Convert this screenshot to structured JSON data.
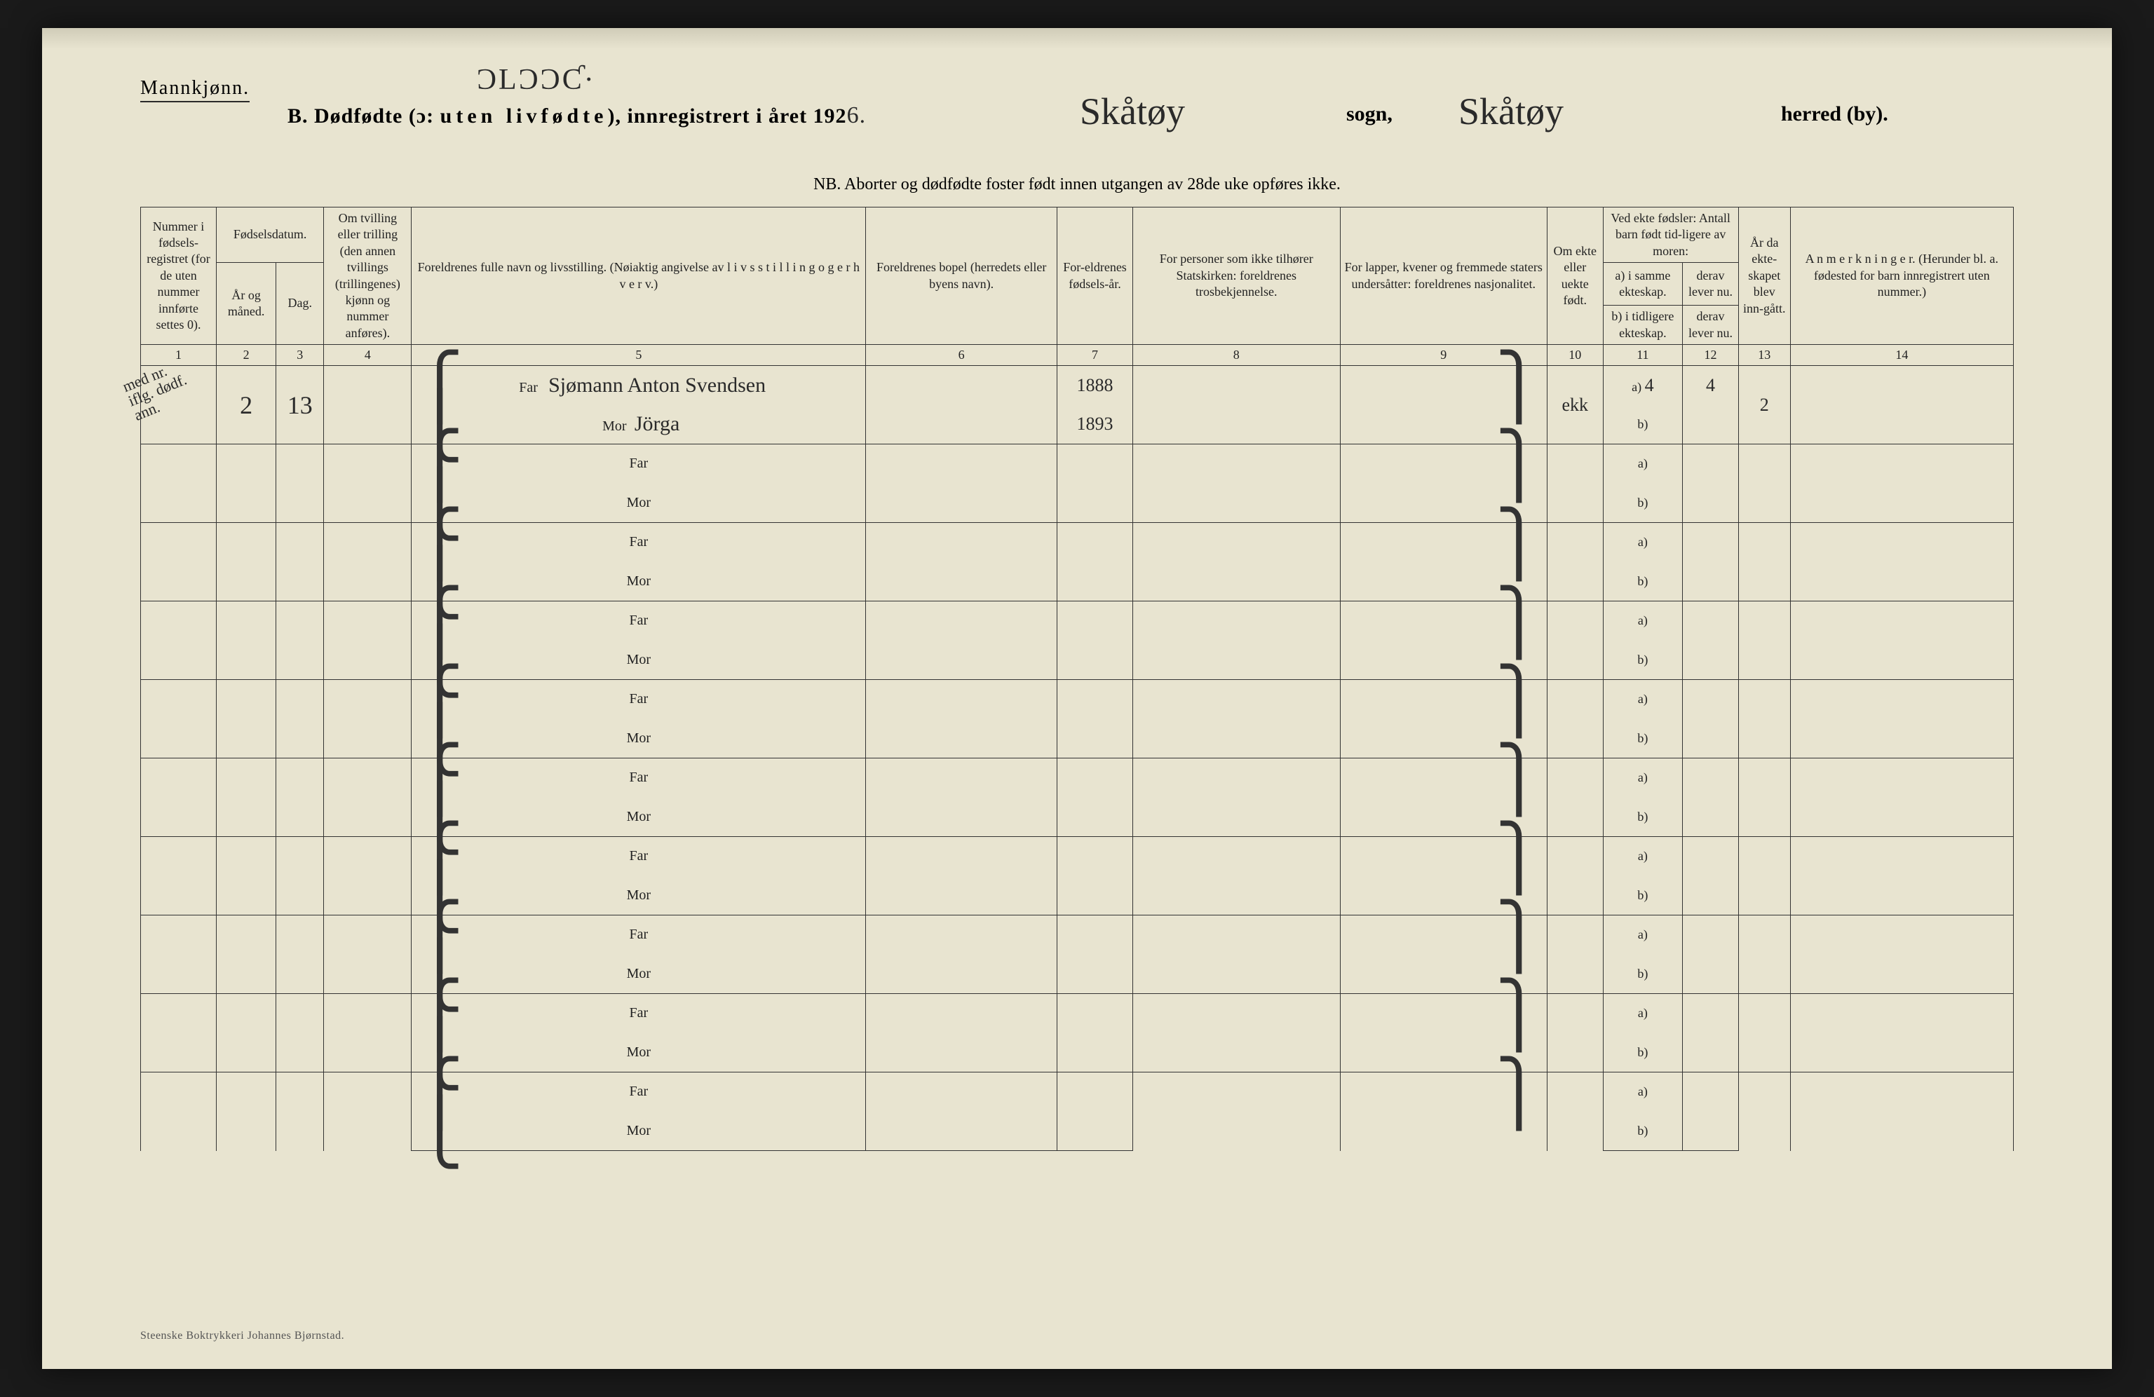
{
  "header": {
    "mannkjonn": "Mannkjønn.",
    "top_scribble": "ƆLƆƆƇ·",
    "title_prefix": "B.  Dødfødte (ɔ:  ",
    "title_spaced": "uten livfødte",
    "title_mid": "), innregistrert i året 192",
    "year_hand": "6.",
    "sogn_hand": "Skåtøy",
    "sogn_label": "sogn,",
    "herred_hand": "Skåtøy",
    "herred_label": "herred (by).",
    "nb": "NB.  Aborter og dødfødte foster født innen utgangen av 28de uke opføres ikke."
  },
  "col_headers": {
    "c1": "Nummer i fødsels-registret (for de uten nummer innførte settes 0).",
    "c2_top": "Fødselsdatum.",
    "c2a": "År og måned.",
    "c2b": "Dag.",
    "c4": "Om tvilling eller trilling (den annen tvillings (trillingenes) kjønn og nummer anføres).",
    "c5": "Foreldrenes fulle navn og livsstilling.\n(Nøiaktig angivelse av  l i v s s t i l l i n g  o g  e r h v e r v.)",
    "c6": "Foreldrenes bopel (herredets eller byens navn).",
    "c7": "For-eldrenes fødsels-år.",
    "c8": "For personer som ikke tilhører Statskirken: foreldrenes trosbekjennelse.",
    "c9": "For lapper, kvener og fremmede staters undersåtter: foreldrenes nasjonalitet.",
    "c10": "Om ekte eller uekte født.",
    "c11_top": "Ved ekte fødsler:\nAntall barn født tid-ligere av moren:",
    "c11a": "a) i samme ekteskap.",
    "c11b": "b) i tidligere ekteskap.",
    "c12a": "derav lever nu.",
    "c12b": "derav lever nu.",
    "c13": "År da ekte-skapet blev inn-gått.",
    "c14": "A n m e r k n i n g e r.\n(Herunder bl. a. fødested for barn innregistrert uten nummer.)"
  },
  "col_numbers": [
    "1",
    "2",
    "3",
    "4",
    "5",
    "6",
    "7",
    "8",
    "9",
    "10",
    "11",
    "12",
    "13",
    "14"
  ],
  "labels": {
    "far": "Far",
    "mor": "Mor",
    "a": "a)",
    "b": "b)"
  },
  "rows": [
    {
      "num_margin_note": "med nr.\niflg. dødf.\nann.",
      "ar_maned": "2",
      "dag": "13",
      "far_text": "Sjømann Anton Svendsen",
      "mor_text": "Jörga",
      "far_year": "1888",
      "mor_year": "1893",
      "ekte": "ekk",
      "a_val": "4",
      "a_derav": "4",
      "aar_ekteskap": "2"
    },
    {},
    {},
    {},
    {},
    {},
    {},
    {},
    {},
    {}
  ],
  "footer": "Steenske Boktrykkeri Johannes Bjørnstad."
}
